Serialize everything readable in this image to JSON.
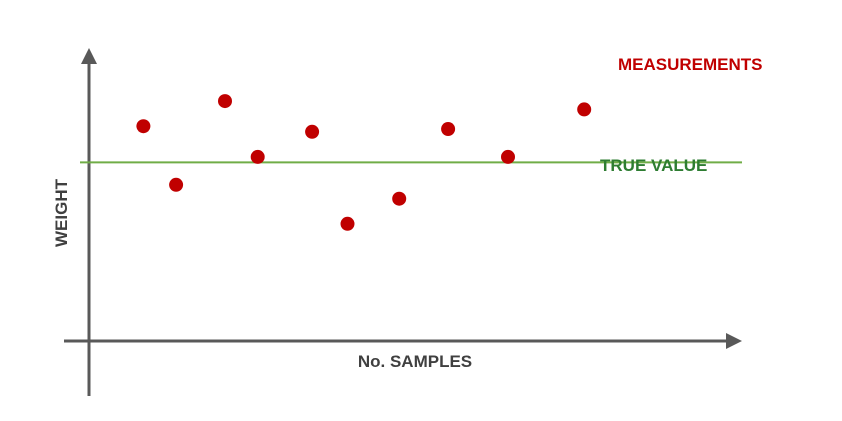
{
  "chart_data": {
    "type": "scatter",
    "title": "",
    "xlabel": "No. SAMPLES",
    "ylabel": "WEIGHT",
    "grid": false,
    "xlim": [
      0,
      12
    ],
    "ylim": [
      0,
      10
    ],
    "series": [
      {
        "name": "MEASUREMENTS",
        "color": "#c00000",
        "points": [
          {
            "x": 1,
            "y": 7.7
          },
          {
            "x": 1.6,
            "y": 5.6
          },
          {
            "x": 2.5,
            "y": 8.6
          },
          {
            "x": 3.1,
            "y": 6.6
          },
          {
            "x": 4.1,
            "y": 7.5
          },
          {
            "x": 4.75,
            "y": 4.2
          },
          {
            "x": 5.7,
            "y": 5.1
          },
          {
            "x": 6.6,
            "y": 7.6
          },
          {
            "x": 7.7,
            "y": 6.6
          },
          {
            "x": 9.1,
            "y": 8.3
          }
        ]
      }
    ],
    "reference_line": {
      "name": "TRUE VALUE",
      "y": 6.4,
      "color": "#70ad47",
      "label_color": "#2e7d32"
    }
  }
}
